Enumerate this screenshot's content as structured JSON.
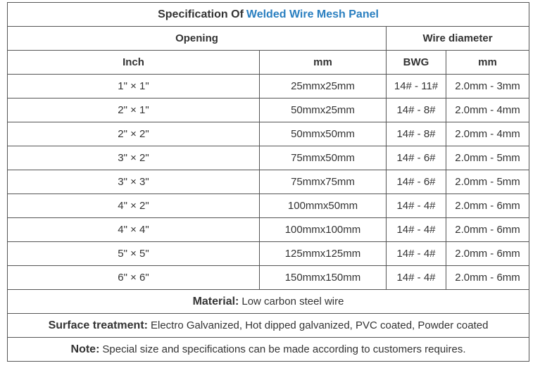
{
  "title": {
    "prefix": "Specification Of",
    "highlight": "Welded Wire Mesh Panel"
  },
  "table": {
    "group_headers": [
      "Opening",
      "Wire diameter"
    ],
    "headers": [
      "Inch",
      "mm",
      "BWG",
      "mm"
    ],
    "rows": [
      [
        "1\" × 1\"",
        "25mmx25mm",
        "14# - 11#",
        "2.0mm - 3mm"
      ],
      [
        "2\" × 1\"",
        "50mmx25mm",
        "14# - 8#",
        "2.0mm - 4mm"
      ],
      [
        "2\" × 2\"",
        "50mmx50mm",
        "14# - 8#",
        "2.0mm - 4mm"
      ],
      [
        "3\" × 2\"",
        "75mmx50mm",
        "14# - 6#",
        "2.0mm - 5mm"
      ],
      [
        "3\" × 3\"",
        "75mmx75mm",
        "14# - 6#",
        "2.0mm - 5mm"
      ],
      [
        "4\" × 2\"",
        "100mmx50mm",
        "14# - 4#",
        "2.0mm - 6mm"
      ],
      [
        "4\" × 4\"",
        "100mmx100mm",
        "14# - 4#",
        "2.0mm - 6mm"
      ],
      [
        "5\" × 5\"",
        "125mmx125mm",
        "14# - 4#",
        "2.0mm - 6mm"
      ],
      [
        "6\" × 6\"",
        "150mmx150mm",
        "14# - 4#",
        "2.0mm - 6mm"
      ]
    ]
  },
  "notes": [
    {
      "label": "Material:",
      "text": "Low carbon steel wire"
    },
    {
      "label": "Surface treatment:",
      "text": "Electro Galvanized, Hot dipped galvanized, PVC coated, Powder coated"
    },
    {
      "label": "Note:",
      "text": "Special size and specifications can be made according to customers requires."
    }
  ]
}
